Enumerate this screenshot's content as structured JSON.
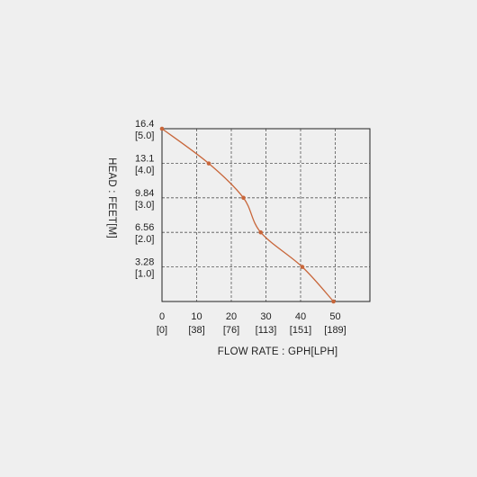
{
  "chart_data": {
    "type": "line",
    "title": "",
    "xlabel": "FLOW RATE : GPH[LPH]",
    "ylabel": "HEAD : FEET[M]",
    "xlim": [
      0,
      60
    ],
    "ylim": [
      0,
      16.4
    ],
    "grid": true,
    "colors": {
      "series": "#c8663a",
      "axis": "#222222",
      "grid": "#555555",
      "background": "#efefef"
    },
    "x_ticks": [
      {
        "value": 0,
        "label": "0",
        "sublabel": "[0]"
      },
      {
        "value": 10,
        "label": "10",
        "sublabel": "[38]"
      },
      {
        "value": 20,
        "label": "20",
        "sublabel": "[76]"
      },
      {
        "value": 30,
        "label": "30",
        "sublabel": "[113]"
      },
      {
        "value": 40,
        "label": "40",
        "sublabel": "[151]"
      },
      {
        "value": 50,
        "label": "50",
        "sublabel": "[189]"
      }
    ],
    "y_ticks": [
      {
        "value": 16.4,
        "label": "16.4",
        "sublabel": "[5.0]"
      },
      {
        "value": 13.1,
        "label": "13.1",
        "sublabel": "[4.0]"
      },
      {
        "value": 9.84,
        "label": "9.84",
        "sublabel": "[3.0]"
      },
      {
        "value": 6.56,
        "label": "6.56",
        "sublabel": "[2.0]"
      },
      {
        "value": 3.28,
        "label": "3.28",
        "sublabel": "[1.0]"
      }
    ],
    "series": [
      {
        "x": [
          0,
          13.5,
          23.5,
          28.5,
          40.5,
          49.5
        ],
        "y": [
          16.4,
          13.1,
          9.84,
          6.56,
          3.28,
          0
        ]
      }
    ]
  }
}
